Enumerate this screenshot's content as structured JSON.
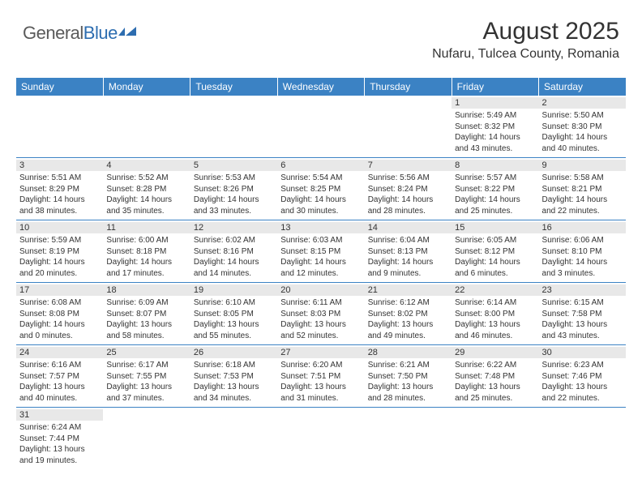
{
  "logo": {
    "general": "General",
    "blue": "Blue"
  },
  "header": {
    "title": "August 2025",
    "location": "Nufaru, Tulcea County, Romania"
  },
  "colors": {
    "header_bg": "#3b82c4",
    "header_text": "#ffffff",
    "daynum_bg": "#e8e8e8",
    "rule": "#3b82c4",
    "logo_gray": "#5a5a5a",
    "logo_blue": "#2d6db0"
  },
  "days_of_week": [
    "Sunday",
    "Monday",
    "Tuesday",
    "Wednesday",
    "Thursday",
    "Friday",
    "Saturday"
  ],
  "weeks": [
    [
      null,
      null,
      null,
      null,
      null,
      {
        "n": "1",
        "sr": "Sunrise: 5:49 AM",
        "ss": "Sunset: 8:32 PM",
        "dl": "Daylight: 14 hours and 43 minutes."
      },
      {
        "n": "2",
        "sr": "Sunrise: 5:50 AM",
        "ss": "Sunset: 8:30 PM",
        "dl": "Daylight: 14 hours and 40 minutes."
      }
    ],
    [
      {
        "n": "3",
        "sr": "Sunrise: 5:51 AM",
        "ss": "Sunset: 8:29 PM",
        "dl": "Daylight: 14 hours and 38 minutes."
      },
      {
        "n": "4",
        "sr": "Sunrise: 5:52 AM",
        "ss": "Sunset: 8:28 PM",
        "dl": "Daylight: 14 hours and 35 minutes."
      },
      {
        "n": "5",
        "sr": "Sunrise: 5:53 AM",
        "ss": "Sunset: 8:26 PM",
        "dl": "Daylight: 14 hours and 33 minutes."
      },
      {
        "n": "6",
        "sr": "Sunrise: 5:54 AM",
        "ss": "Sunset: 8:25 PM",
        "dl": "Daylight: 14 hours and 30 minutes."
      },
      {
        "n": "7",
        "sr": "Sunrise: 5:56 AM",
        "ss": "Sunset: 8:24 PM",
        "dl": "Daylight: 14 hours and 28 minutes."
      },
      {
        "n": "8",
        "sr": "Sunrise: 5:57 AM",
        "ss": "Sunset: 8:22 PM",
        "dl": "Daylight: 14 hours and 25 minutes."
      },
      {
        "n": "9",
        "sr": "Sunrise: 5:58 AM",
        "ss": "Sunset: 8:21 PM",
        "dl": "Daylight: 14 hours and 22 minutes."
      }
    ],
    [
      {
        "n": "10",
        "sr": "Sunrise: 5:59 AM",
        "ss": "Sunset: 8:19 PM",
        "dl": "Daylight: 14 hours and 20 minutes."
      },
      {
        "n": "11",
        "sr": "Sunrise: 6:00 AM",
        "ss": "Sunset: 8:18 PM",
        "dl": "Daylight: 14 hours and 17 minutes."
      },
      {
        "n": "12",
        "sr": "Sunrise: 6:02 AM",
        "ss": "Sunset: 8:16 PM",
        "dl": "Daylight: 14 hours and 14 minutes."
      },
      {
        "n": "13",
        "sr": "Sunrise: 6:03 AM",
        "ss": "Sunset: 8:15 PM",
        "dl": "Daylight: 14 hours and 12 minutes."
      },
      {
        "n": "14",
        "sr": "Sunrise: 6:04 AM",
        "ss": "Sunset: 8:13 PM",
        "dl": "Daylight: 14 hours and 9 minutes."
      },
      {
        "n": "15",
        "sr": "Sunrise: 6:05 AM",
        "ss": "Sunset: 8:12 PM",
        "dl": "Daylight: 14 hours and 6 minutes."
      },
      {
        "n": "16",
        "sr": "Sunrise: 6:06 AM",
        "ss": "Sunset: 8:10 PM",
        "dl": "Daylight: 14 hours and 3 minutes."
      }
    ],
    [
      {
        "n": "17",
        "sr": "Sunrise: 6:08 AM",
        "ss": "Sunset: 8:08 PM",
        "dl": "Daylight: 14 hours and 0 minutes."
      },
      {
        "n": "18",
        "sr": "Sunrise: 6:09 AM",
        "ss": "Sunset: 8:07 PM",
        "dl": "Daylight: 13 hours and 58 minutes."
      },
      {
        "n": "19",
        "sr": "Sunrise: 6:10 AM",
        "ss": "Sunset: 8:05 PM",
        "dl": "Daylight: 13 hours and 55 minutes."
      },
      {
        "n": "20",
        "sr": "Sunrise: 6:11 AM",
        "ss": "Sunset: 8:03 PM",
        "dl": "Daylight: 13 hours and 52 minutes."
      },
      {
        "n": "21",
        "sr": "Sunrise: 6:12 AM",
        "ss": "Sunset: 8:02 PM",
        "dl": "Daylight: 13 hours and 49 minutes."
      },
      {
        "n": "22",
        "sr": "Sunrise: 6:14 AM",
        "ss": "Sunset: 8:00 PM",
        "dl": "Daylight: 13 hours and 46 minutes."
      },
      {
        "n": "23",
        "sr": "Sunrise: 6:15 AM",
        "ss": "Sunset: 7:58 PM",
        "dl": "Daylight: 13 hours and 43 minutes."
      }
    ],
    [
      {
        "n": "24",
        "sr": "Sunrise: 6:16 AM",
        "ss": "Sunset: 7:57 PM",
        "dl": "Daylight: 13 hours and 40 minutes."
      },
      {
        "n": "25",
        "sr": "Sunrise: 6:17 AM",
        "ss": "Sunset: 7:55 PM",
        "dl": "Daylight: 13 hours and 37 minutes."
      },
      {
        "n": "26",
        "sr": "Sunrise: 6:18 AM",
        "ss": "Sunset: 7:53 PM",
        "dl": "Daylight: 13 hours and 34 minutes."
      },
      {
        "n": "27",
        "sr": "Sunrise: 6:20 AM",
        "ss": "Sunset: 7:51 PM",
        "dl": "Daylight: 13 hours and 31 minutes."
      },
      {
        "n": "28",
        "sr": "Sunrise: 6:21 AM",
        "ss": "Sunset: 7:50 PM",
        "dl": "Daylight: 13 hours and 28 minutes."
      },
      {
        "n": "29",
        "sr": "Sunrise: 6:22 AM",
        "ss": "Sunset: 7:48 PM",
        "dl": "Daylight: 13 hours and 25 minutes."
      },
      {
        "n": "30",
        "sr": "Sunrise: 6:23 AM",
        "ss": "Sunset: 7:46 PM",
        "dl": "Daylight: 13 hours and 22 minutes."
      }
    ],
    [
      {
        "n": "31",
        "sr": "Sunrise: 6:24 AM",
        "ss": "Sunset: 7:44 PM",
        "dl": "Daylight: 13 hours and 19 minutes."
      },
      null,
      null,
      null,
      null,
      null,
      null
    ]
  ]
}
